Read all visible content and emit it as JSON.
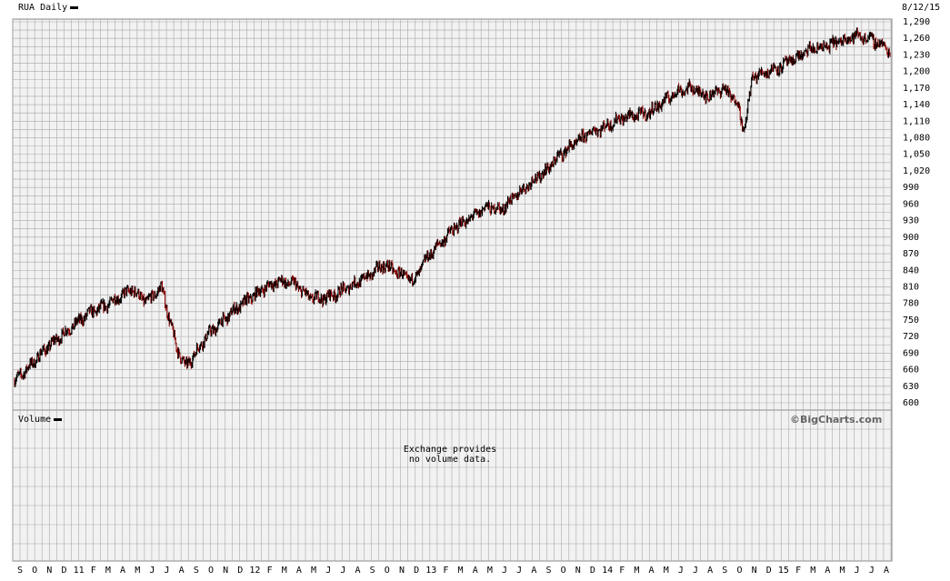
{
  "header": {
    "title": "RUA Daily",
    "date": "8/12/15"
  },
  "volume": {
    "label": "Volume",
    "note_line1": "Exchange provides",
    "note_line2": "no volume data."
  },
  "brand": "©BigCharts.com",
  "colors": {
    "up": "#000000",
    "down": "#8b0000",
    "grid": "#a8a8a8",
    "panel_bg": "#f2f2f2"
  },
  "chart_data": {
    "type": "line",
    "title": "RUA Daily",
    "ylim": [
      600,
      1290
    ],
    "yticks": [
      "600",
      "630",
      "660",
      "690",
      "720",
      "750",
      "780",
      "810",
      "840",
      "870",
      "900",
      "930",
      "960",
      "990",
      "1,020",
      "1,050",
      "1,080",
      "1,110",
      "1,140",
      "1,170",
      "1,200",
      "1,230",
      "1,260",
      "1,290"
    ],
    "xticks": [
      "S",
      "O",
      "N",
      "D",
      "11",
      "F",
      "M",
      "A",
      "M",
      "J",
      "J",
      "A",
      "S",
      "O",
      "N",
      "D",
      "12",
      "F",
      "M",
      "A",
      "M",
      "J",
      "J",
      "A",
      "S",
      "O",
      "N",
      "D",
      "13",
      "F",
      "M",
      "A",
      "M",
      "J",
      "J",
      "A",
      "S",
      "O",
      "N",
      "D",
      "14",
      "F",
      "M",
      "A",
      "M",
      "J",
      "J",
      "A",
      "S",
      "O",
      "N",
      "D",
      "15",
      "F",
      "M",
      "A",
      "M",
      "J",
      "J",
      "A"
    ],
    "grid": true,
    "series": [
      {
        "x": [
          "2010-09-01",
          "2010-10-01",
          "2010-11-01",
          "2010-12-01",
          "2011-01-01",
          "2011-02-01",
          "2011-03-01",
          "2011-04-01",
          "2011-05-01",
          "2011-06-01",
          "2011-07-01",
          "2011-08-01",
          "2011-08-20",
          "2011-09-01",
          "2011-10-01",
          "2011-11-01",
          "2011-12-01",
          "2012-01-01",
          "2012-02-01",
          "2012-03-01",
          "2012-04-01",
          "2012-05-01",
          "2012-06-01",
          "2012-07-01",
          "2012-08-01",
          "2012-09-01",
          "2012-10-01",
          "2012-11-01",
          "2012-12-01",
          "2013-01-01",
          "2013-02-01",
          "2013-03-01",
          "2013-04-01",
          "2013-05-01",
          "2013-06-01",
          "2013-07-01",
          "2013-08-01",
          "2013-09-01",
          "2013-10-01",
          "2013-11-01",
          "2013-12-01",
          "2014-01-01",
          "2014-02-01",
          "2014-03-01",
          "2014-04-01",
          "2014-05-01",
          "2014-06-01",
          "2014-07-01",
          "2014-08-01",
          "2014-09-01",
          "2014-10-01",
          "2014-10-15",
          "2014-11-01",
          "2014-12-01",
          "2015-01-01",
          "2015-02-01",
          "2015-03-01",
          "2015-04-01",
          "2015-05-01",
          "2015-06-01",
          "2015-07-01",
          "2015-08-01",
          "2015-08-12"
        ],
        "values": [
          640,
          665,
          695,
          718,
          740,
          762,
          772,
          790,
          805,
          782,
          810,
          700,
          665,
          680,
          720,
          745,
          770,
          790,
          810,
          820,
          815,
          790,
          790,
          800,
          815,
          830,
          850,
          835,
          820,
          865,
          895,
          920,
          935,
          955,
          950,
          975,
          1000,
          1020,
          1050,
          1070,
          1090,
          1100,
          1115,
          1120,
          1125,
          1145,
          1165,
          1170,
          1155,
          1170,
          1145,
          1090,
          1190,
          1200,
          1210,
          1225,
          1240,
          1245,
          1255,
          1265,
          1260,
          1245,
          1235
        ]
      }
    ]
  }
}
